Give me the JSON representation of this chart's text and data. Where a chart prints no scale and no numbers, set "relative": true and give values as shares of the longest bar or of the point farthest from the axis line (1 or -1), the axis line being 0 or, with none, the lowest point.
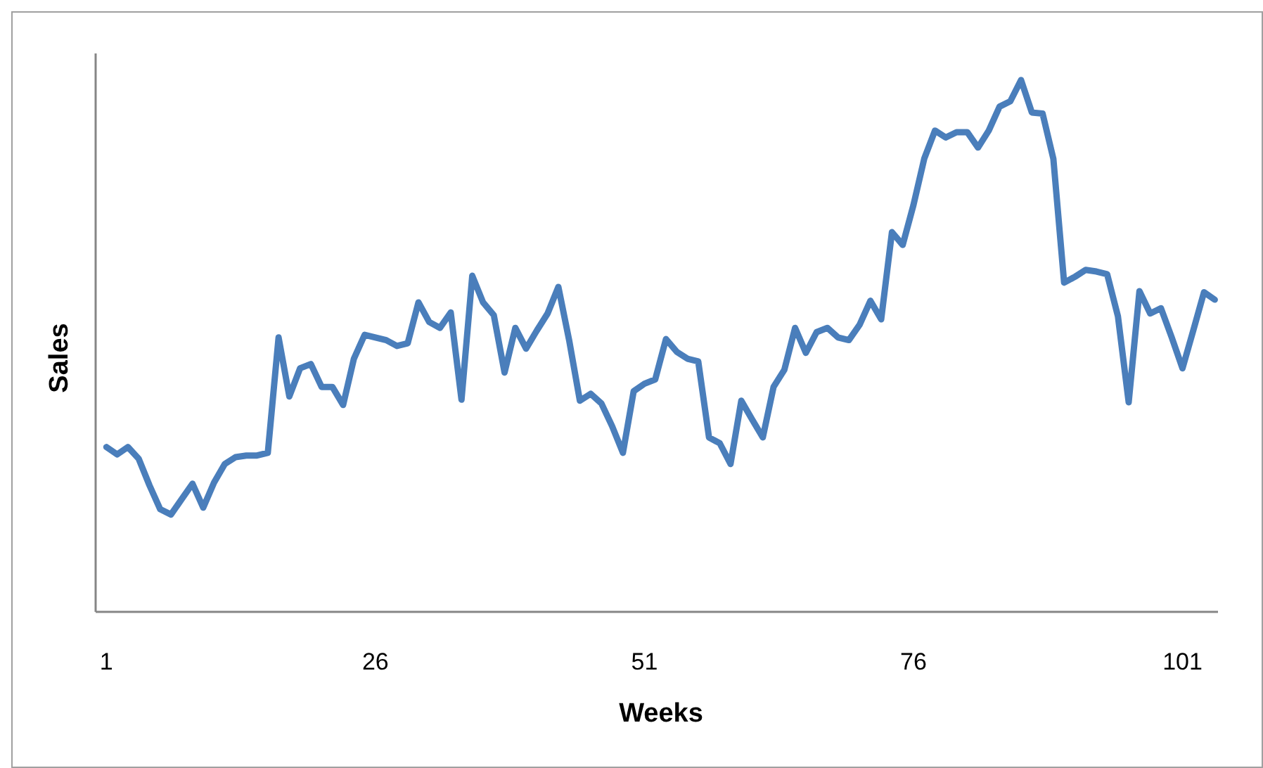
{
  "chart_data": {
    "type": "line",
    "xlabel": "Weeks",
    "ylabel": "Sales",
    "relative": true,
    "x": [
      1,
      2,
      3,
      4,
      5,
      6,
      7,
      8,
      9,
      10,
      11,
      12,
      13,
      14,
      15,
      16,
      17,
      18,
      19,
      20,
      21,
      22,
      23,
      24,
      25,
      26,
      27,
      28,
      29,
      30,
      31,
      32,
      33,
      34,
      35,
      36,
      37,
      38,
      39,
      40,
      41,
      42,
      43,
      44,
      45,
      46,
      47,
      48,
      49,
      50,
      51,
      52,
      53,
      54,
      55,
      56,
      57,
      58,
      59,
      60,
      61,
      62,
      63,
      64,
      65,
      66,
      67,
      68,
      69,
      70,
      71,
      72,
      73,
      74,
      75,
      76,
      77,
      78,
      79,
      80,
      81,
      82,
      83,
      84,
      85,
      86,
      87,
      88,
      89,
      90,
      91,
      92,
      93,
      94,
      95,
      96,
      97,
      98,
      99,
      100,
      101,
      102,
      103,
      104
    ],
    "xlim": [
      0,
      104.3
    ],
    "xticks": [
      1,
      26,
      51,
      76,
      101
    ],
    "tick_labels": "x",
    "grid": false,
    "marker": "none",
    "line_style": "solid",
    "series": [
      {
        "color": "#4a7ebb",
        "values": [
          0.31,
          0.296,
          0.31,
          0.288,
          0.238,
          0.193,
          0.183,
          0.212,
          0.241,
          0.196,
          0.243,
          0.278,
          0.291,
          0.294,
          0.294,
          0.299,
          0.516,
          0.405,
          0.458,
          0.466,
          0.423,
          0.423,
          0.389,
          0.476,
          0.521,
          0.516,
          0.511,
          0.5,
          0.505,
          0.582,
          0.545,
          0.534,
          0.563,
          0.399,
          0.632,
          0.582,
          0.558,
          0.45,
          0.534,
          0.495,
          0.529,
          0.561,
          0.611,
          0.511,
          0.397,
          0.41,
          0.392,
          0.349,
          0.299,
          0.415,
          0.429,
          0.437,
          0.513,
          0.489,
          0.476,
          0.471,
          0.328,
          0.317,
          0.278,
          0.397,
          0.362,
          0.328,
          0.423,
          0.455,
          0.534,
          0.487,
          0.526,
          0.534,
          0.516,
          0.511,
          0.54,
          0.585,
          0.55,
          0.714,
          0.69,
          0.765,
          0.852,
          0.905,
          0.892,
          0.902,
          0.902,
          0.873,
          0.905,
          0.95,
          0.96,
          1,
          0.939,
          0.937,
          0.852,
          0.619,
          0.63,
          0.643,
          0.64,
          0.635,
          0.556,
          0.394,
          0.603,
          0.561,
          0.571,
          0.516,
          0.458,
          0.529,
          0.601,
          0.587
        ]
      }
    ]
  }
}
